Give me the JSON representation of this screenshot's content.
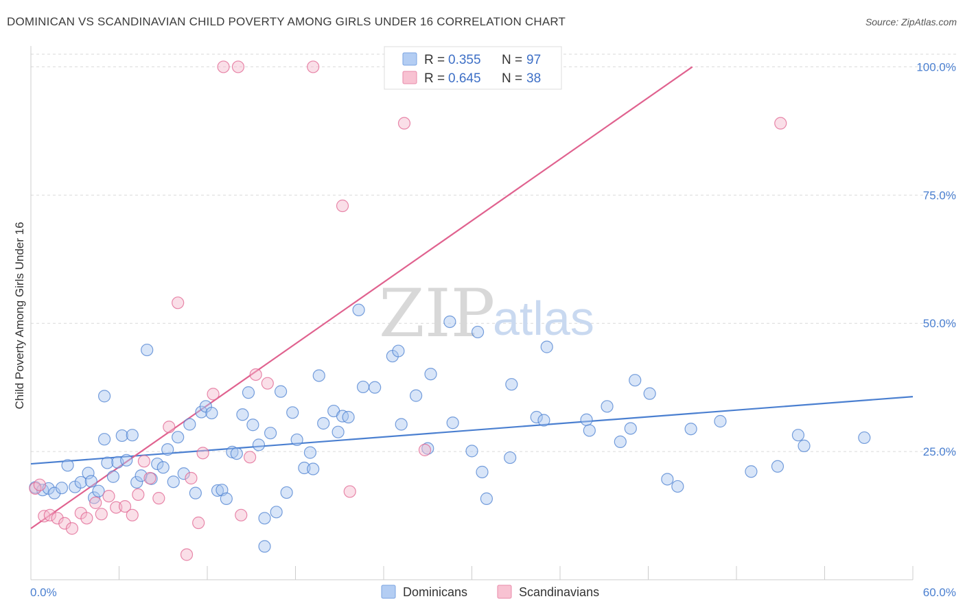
{
  "title": "DOMINICAN VS SCANDINAVIAN CHILD POVERTY AMONG GIRLS UNDER 16 CORRELATION CHART",
  "source": "Source: ZipAtlas.com",
  "colors": {
    "blue": "#4a7fd0",
    "blue_fill": "#a9c6f0",
    "pink": "#e0628f",
    "pink_fill": "#f5b8cb",
    "grid": "#d9d9d9"
  },
  "legend": {
    "r_label": "R =",
    "n_label": "N =",
    "rows": [
      {
        "series": "Dominicans",
        "r": "0.355",
        "n": "97"
      },
      {
        "series": "Scandinavians",
        "r": "0.645",
        "n": "38"
      }
    ]
  },
  "watermark": {
    "zip": "ZIP",
    "atlas": "atlas"
  },
  "chart_data": {
    "type": "scatter",
    "title": "DOMINICAN VS SCANDINAVIAN CHILD POVERTY AMONG GIRLS UNDER 16 CORRELATION CHART",
    "xlabel": "",
    "ylabel": "Child Poverty Among Girls Under 16",
    "xlim": [
      0,
      60
    ],
    "ylim": [
      0,
      103
    ],
    "x_tick_labels": [
      "0.0%",
      "60.0%"
    ],
    "y_ticks": [
      25,
      50,
      75,
      100
    ],
    "y_tick_labels": [
      "25.0%",
      "50.0%",
      "75.0%",
      "100.0%"
    ],
    "legend_labels": [
      "Dominicans",
      "Scandinavians"
    ],
    "series": [
      {
        "name": "Dominicans",
        "trend": {
          "x": [
            0,
            60
          ],
          "y": [
            22.6,
            35.7
          ]
        },
        "points": [
          [
            0.3,
            18.0
          ],
          [
            0.8,
            17.5
          ],
          [
            1.2,
            17.8
          ],
          [
            1.6,
            16.9
          ],
          [
            2.1,
            17.9
          ],
          [
            2.5,
            22.3
          ],
          [
            3.0,
            18.1
          ],
          [
            3.4,
            19.0
          ],
          [
            3.9,
            20.8
          ],
          [
            4.3,
            16.0
          ],
          [
            4.1,
            19.2
          ],
          [
            4.6,
            17.3
          ],
          [
            5.0,
            27.4
          ],
          [
            5.2,
            22.8
          ],
          [
            5.6,
            20.1
          ],
          [
            5.9,
            22.9
          ],
          [
            6.2,
            28.1
          ],
          [
            6.5,
            23.3
          ],
          [
            6.9,
            28.2
          ],
          [
            7.2,
            19.0
          ],
          [
            7.5,
            20.3
          ],
          [
            7.9,
            44.8
          ],
          [
            8.2,
            19.7
          ],
          [
            8.6,
            22.6
          ],
          [
            9.0,
            21.9
          ],
          [
            9.3,
            25.4
          ],
          [
            9.7,
            19.1
          ],
          [
            10.0,
            27.8
          ],
          [
            10.4,
            20.7
          ],
          [
            10.8,
            30.3
          ],
          [
            11.2,
            16.9
          ],
          [
            11.6,
            32.7
          ],
          [
            11.9,
            33.8
          ],
          [
            12.3,
            32.5
          ],
          [
            12.7,
            17.4
          ],
          [
            13.0,
            17.5
          ],
          [
            13.3,
            15.8
          ],
          [
            13.7,
            24.9
          ],
          [
            14.0,
            24.6
          ],
          [
            14.4,
            32.2
          ],
          [
            14.8,
            36.5
          ],
          [
            15.1,
            30.2
          ],
          [
            15.5,
            26.3
          ],
          [
            15.9,
            12.0
          ],
          [
            16.3,
            28.6
          ],
          [
            16.7,
            13.2
          ],
          [
            17.0,
            36.7
          ],
          [
            17.4,
            17.0
          ],
          [
            17.8,
            32.6
          ],
          [
            18.1,
            27.3
          ],
          [
            18.6,
            21.8
          ],
          [
            19.2,
            21.6
          ],
          [
            19.0,
            24.8
          ],
          [
            19.6,
            39.8
          ],
          [
            19.9,
            30.5
          ],
          [
            20.6,
            32.9
          ],
          [
            20.9,
            28.8
          ],
          [
            21.2,
            31.9
          ],
          [
            21.6,
            31.7
          ],
          [
            22.3,
            52.6
          ],
          [
            22.6,
            37.6
          ],
          [
            23.4,
            37.5
          ],
          [
            24.6,
            43.6
          ],
          [
            25.0,
            44.6
          ],
          [
            26.2,
            35.9
          ],
          [
            27.0,
            25.6
          ],
          [
            27.2,
            40.1
          ],
          [
            28.5,
            50.3
          ],
          [
            28.7,
            30.6
          ],
          [
            30.0,
            25.1
          ],
          [
            30.4,
            48.3
          ],
          [
            30.7,
            21.0
          ],
          [
            31.0,
            15.8
          ],
          [
            32.6,
            23.8
          ],
          [
            32.7,
            38.1
          ],
          [
            34.4,
            31.7
          ],
          [
            34.9,
            31.1
          ],
          [
            35.1,
            45.4
          ],
          [
            37.8,
            31.2
          ],
          [
            38.0,
            29.1
          ],
          [
            39.2,
            33.8
          ],
          [
            40.1,
            26.9
          ],
          [
            40.8,
            29.5
          ],
          [
            41.1,
            38.9
          ],
          [
            42.1,
            36.3
          ],
          [
            43.3,
            19.6
          ],
          [
            44.0,
            18.2
          ],
          [
            44.9,
            29.4
          ],
          [
            46.9,
            30.9
          ],
          [
            49.0,
            21.1
          ],
          [
            50.8,
            22.1
          ],
          [
            52.2,
            28.2
          ],
          [
            52.6,
            26.1
          ],
          [
            56.7,
            27.7
          ],
          [
            15.9,
            6.5
          ],
          [
            5.0,
            35.8
          ],
          [
            25.2,
            30.3
          ]
        ]
      },
      {
        "name": "Scandinavians",
        "trend": {
          "x": [
            0,
            45
          ],
          "y": [
            10.0,
            100.0
          ]
        },
        "points": [
          [
            0.3,
            17.8
          ],
          [
            0.6,
            18.5
          ],
          [
            0.9,
            12.4
          ],
          [
            1.3,
            12.6
          ],
          [
            1.8,
            12.0
          ],
          [
            2.3,
            11.0
          ],
          [
            2.8,
            10.0
          ],
          [
            3.4,
            13.0
          ],
          [
            3.8,
            12.0
          ],
          [
            4.4,
            15.0
          ],
          [
            4.8,
            12.8
          ],
          [
            5.3,
            16.3
          ],
          [
            5.8,
            14.1
          ],
          [
            6.4,
            14.3
          ],
          [
            6.9,
            12.6
          ],
          [
            7.3,
            16.6
          ],
          [
            7.7,
            23.1
          ],
          [
            8.1,
            19.8
          ],
          [
            8.7,
            15.9
          ],
          [
            9.4,
            29.8
          ],
          [
            10.0,
            54.0
          ],
          [
            10.6,
            4.9
          ],
          [
            10.9,
            19.8
          ],
          [
            11.4,
            11.1
          ],
          [
            11.7,
            24.7
          ],
          [
            12.4,
            36.2
          ],
          [
            13.1,
            100.0
          ],
          [
            14.1,
            100.0
          ],
          [
            14.9,
            23.9
          ],
          [
            15.3,
            40.0
          ],
          [
            16.1,
            38.3
          ],
          [
            14.3,
            12.6
          ],
          [
            19.2,
            100.0
          ],
          [
            21.2,
            72.9
          ],
          [
            21.7,
            17.2
          ],
          [
            25.4,
            89.0
          ],
          [
            26.8,
            25.3
          ],
          [
            51.0,
            89.0
          ]
        ]
      }
    ]
  },
  "axis": {
    "ylabel": "Child Poverty Among Girls Under 16",
    "x_min_label": "0.0%",
    "x_max_label": "60.0%"
  }
}
